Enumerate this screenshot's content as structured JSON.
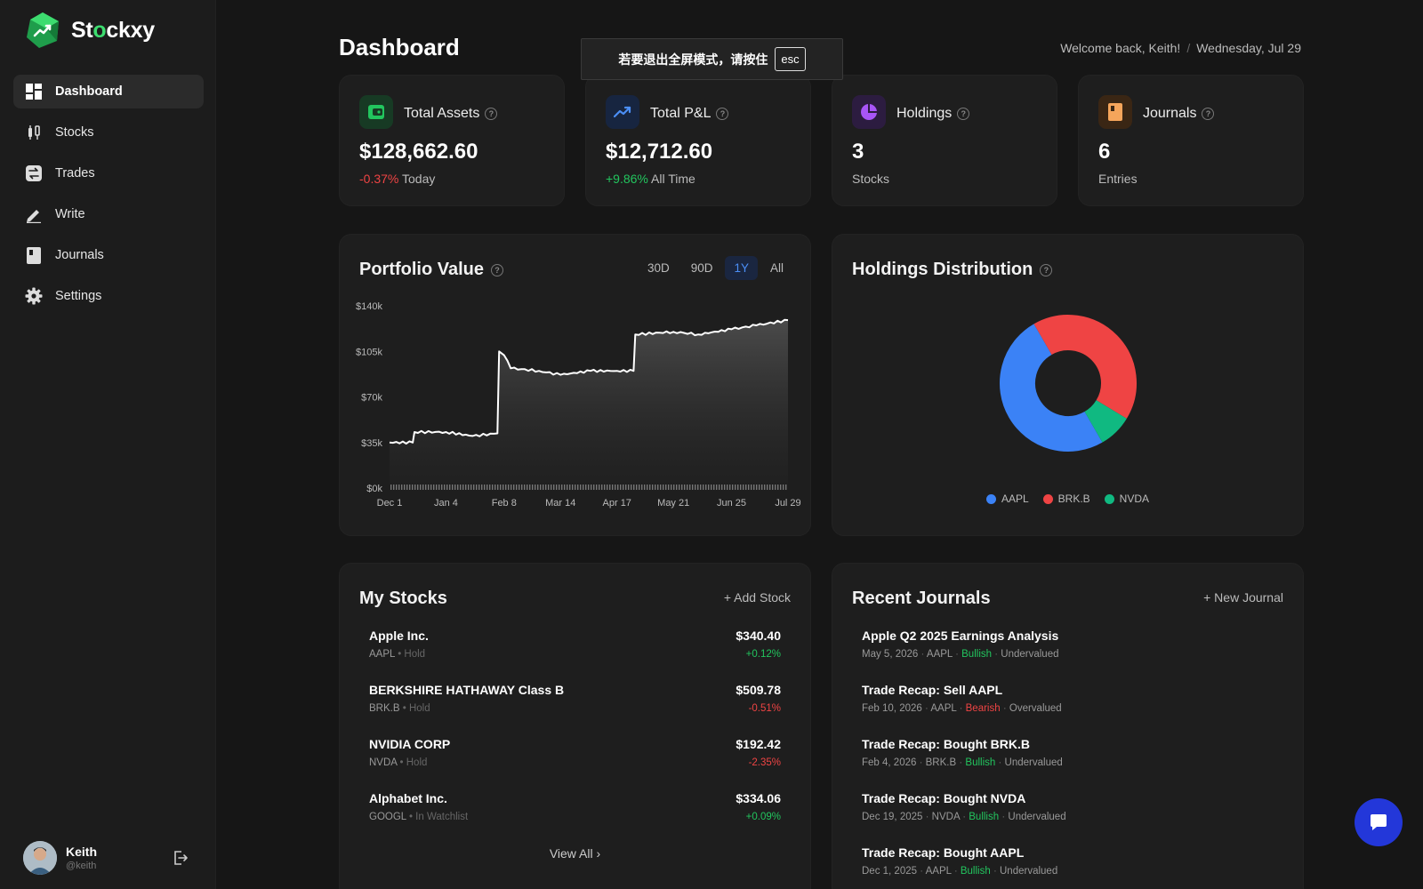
{
  "app": {
    "name_prefix": "St",
    "name_accent": "o",
    "name_suffix": "ckxy"
  },
  "sidebar": {
    "items": [
      {
        "label": "Dashboard",
        "icon": "dashboard-icon",
        "active": true
      },
      {
        "label": "Stocks",
        "icon": "candlestick-icon"
      },
      {
        "label": "Trades",
        "icon": "swap-icon"
      },
      {
        "label": "Write",
        "icon": "pencil-icon"
      },
      {
        "label": "Journals",
        "icon": "journal-icon"
      },
      {
        "label": "Settings",
        "icon": "gear-icon"
      }
    ],
    "user": {
      "name": "Keith",
      "handle": "@keith"
    }
  },
  "header": {
    "title": "Dashboard",
    "welcome": "Welcome back, Keith!",
    "date": "Wednesday, Jul 29"
  },
  "toast": {
    "message": "若要退出全屏模式，请按住",
    "key": "esc"
  },
  "stats": [
    {
      "label": "Total Assets",
      "value": "$128,662.60",
      "change": "-0.37%",
      "change_dir": "neg",
      "sub": "Today",
      "icon": "wallet-icon",
      "accent": "#22c55e"
    },
    {
      "label": "Total P&L",
      "value": "$12,712.60",
      "change": "+9.86%",
      "change_dir": "pos",
      "sub": "All Time",
      "icon": "trend-up-icon",
      "accent": "#4b8ef5"
    },
    {
      "label": "Holdings",
      "value": "3",
      "change": "",
      "change_dir": "",
      "sub": "Stocks",
      "icon": "pie-icon",
      "accent": "#a855f7"
    },
    {
      "label": "Journals",
      "value": "6",
      "change": "",
      "change_dir": "",
      "sub": "Entries",
      "icon": "book-icon",
      "accent": "#f59e0b"
    }
  ],
  "portfolio": {
    "title": "Portfolio Value",
    "ranges": [
      "30D",
      "90D",
      "1Y",
      "All"
    ],
    "active_range": "1Y"
  },
  "holdings": {
    "title": "Holdings Distribution"
  },
  "chart_data": [
    {
      "type": "area",
      "title": "Portfolio Value",
      "x_ticks": [
        "Dec 1",
        "Jan 4",
        "Feb 8",
        "Mar 14",
        "Apr 17",
        "May 21",
        "Jun 25",
        "Jul 29"
      ],
      "y_ticks": [
        "$0k",
        "$35k",
        "$70k",
        "$105k",
        "$140k"
      ],
      "ylim": [
        0,
        140000
      ],
      "series": [
        {
          "x": [
            "Dec 1",
            "Dec 15",
            "Dec 16",
            "Jan 4",
            "Jan 20",
            "Feb 4",
            "Feb 5",
            "Feb 8",
            "Feb 12",
            "Mar 1",
            "Mar 14",
            "Apr 1",
            "Apr 17",
            "Apr 27",
            "Apr 28",
            "May 21",
            "Jun 5",
            "Jun 25",
            "Jul 10",
            "Jul 29"
          ],
          "values": [
            35000,
            35000,
            43000,
            43000,
            40000,
            42000,
            105000,
            102000,
            92000,
            90000,
            87000,
            90000,
            90000,
            90000,
            118000,
            120000,
            118000,
            122000,
            125000,
            129000
          ]
        }
      ]
    },
    {
      "type": "pie",
      "title": "Holdings Distribution",
      "labels": [
        "AAPL",
        "BRK.B",
        "NVDA"
      ],
      "values": [
        50,
        42,
        8
      ],
      "colors": [
        "#3b82f6",
        "#ef4444",
        "#10b981"
      ],
      "legend": "bottom"
    }
  ],
  "my_stocks": {
    "title": "My Stocks",
    "action": "+ Add Stock",
    "view_all": "View All",
    "rows": [
      {
        "name": "Apple Inc.",
        "ticker": "AAPL",
        "status": "• Hold",
        "price": "$340.40",
        "change": "+0.12%",
        "dir": "pos"
      },
      {
        "name": "BERKSHIRE HATHAWAY Class B",
        "ticker": "BRK.B",
        "status": "• Hold",
        "price": "$509.78",
        "change": "-0.51%",
        "dir": "neg"
      },
      {
        "name": "NVIDIA CORP",
        "ticker": "NVDA",
        "status": "• Hold",
        "price": "$192.42",
        "change": "-2.35%",
        "dir": "neg"
      },
      {
        "name": "Alphabet Inc.",
        "ticker": "GOOGL",
        "status": "• In Watchlist",
        "price": "$334.06",
        "change": "+0.09%",
        "dir": "pos"
      }
    ]
  },
  "recent_journals": {
    "title": "Recent Journals",
    "action": "+ New Journal",
    "rows": [
      {
        "title": "Apple Q2 2025 Earnings Analysis",
        "date": "May 5, 2026",
        "ticker": "AAPL",
        "sentiment": "Bullish",
        "dir": "pos",
        "valuation": "Undervalued"
      },
      {
        "title": "Trade Recap: Sell AAPL",
        "date": "Feb 10, 2026",
        "ticker": "AAPL",
        "sentiment": "Bearish",
        "dir": "neg",
        "valuation": "Overvalued"
      },
      {
        "title": "Trade Recap: Bought BRK.B",
        "date": "Feb 4, 2026",
        "ticker": "BRK.B",
        "sentiment": "Bullish",
        "dir": "pos",
        "valuation": "Undervalued"
      },
      {
        "title": "Trade Recap: Bought NVDA",
        "date": "Dec 19, 2025",
        "ticker": "NVDA",
        "sentiment": "Bullish",
        "dir": "pos",
        "valuation": "Undervalued"
      },
      {
        "title": "Trade Recap: Bought AAPL",
        "date": "Dec 1, 2025",
        "ticker": "AAPL",
        "sentiment": "Bullish",
        "dir": "pos",
        "valuation": "Undervalued"
      }
    ]
  }
}
